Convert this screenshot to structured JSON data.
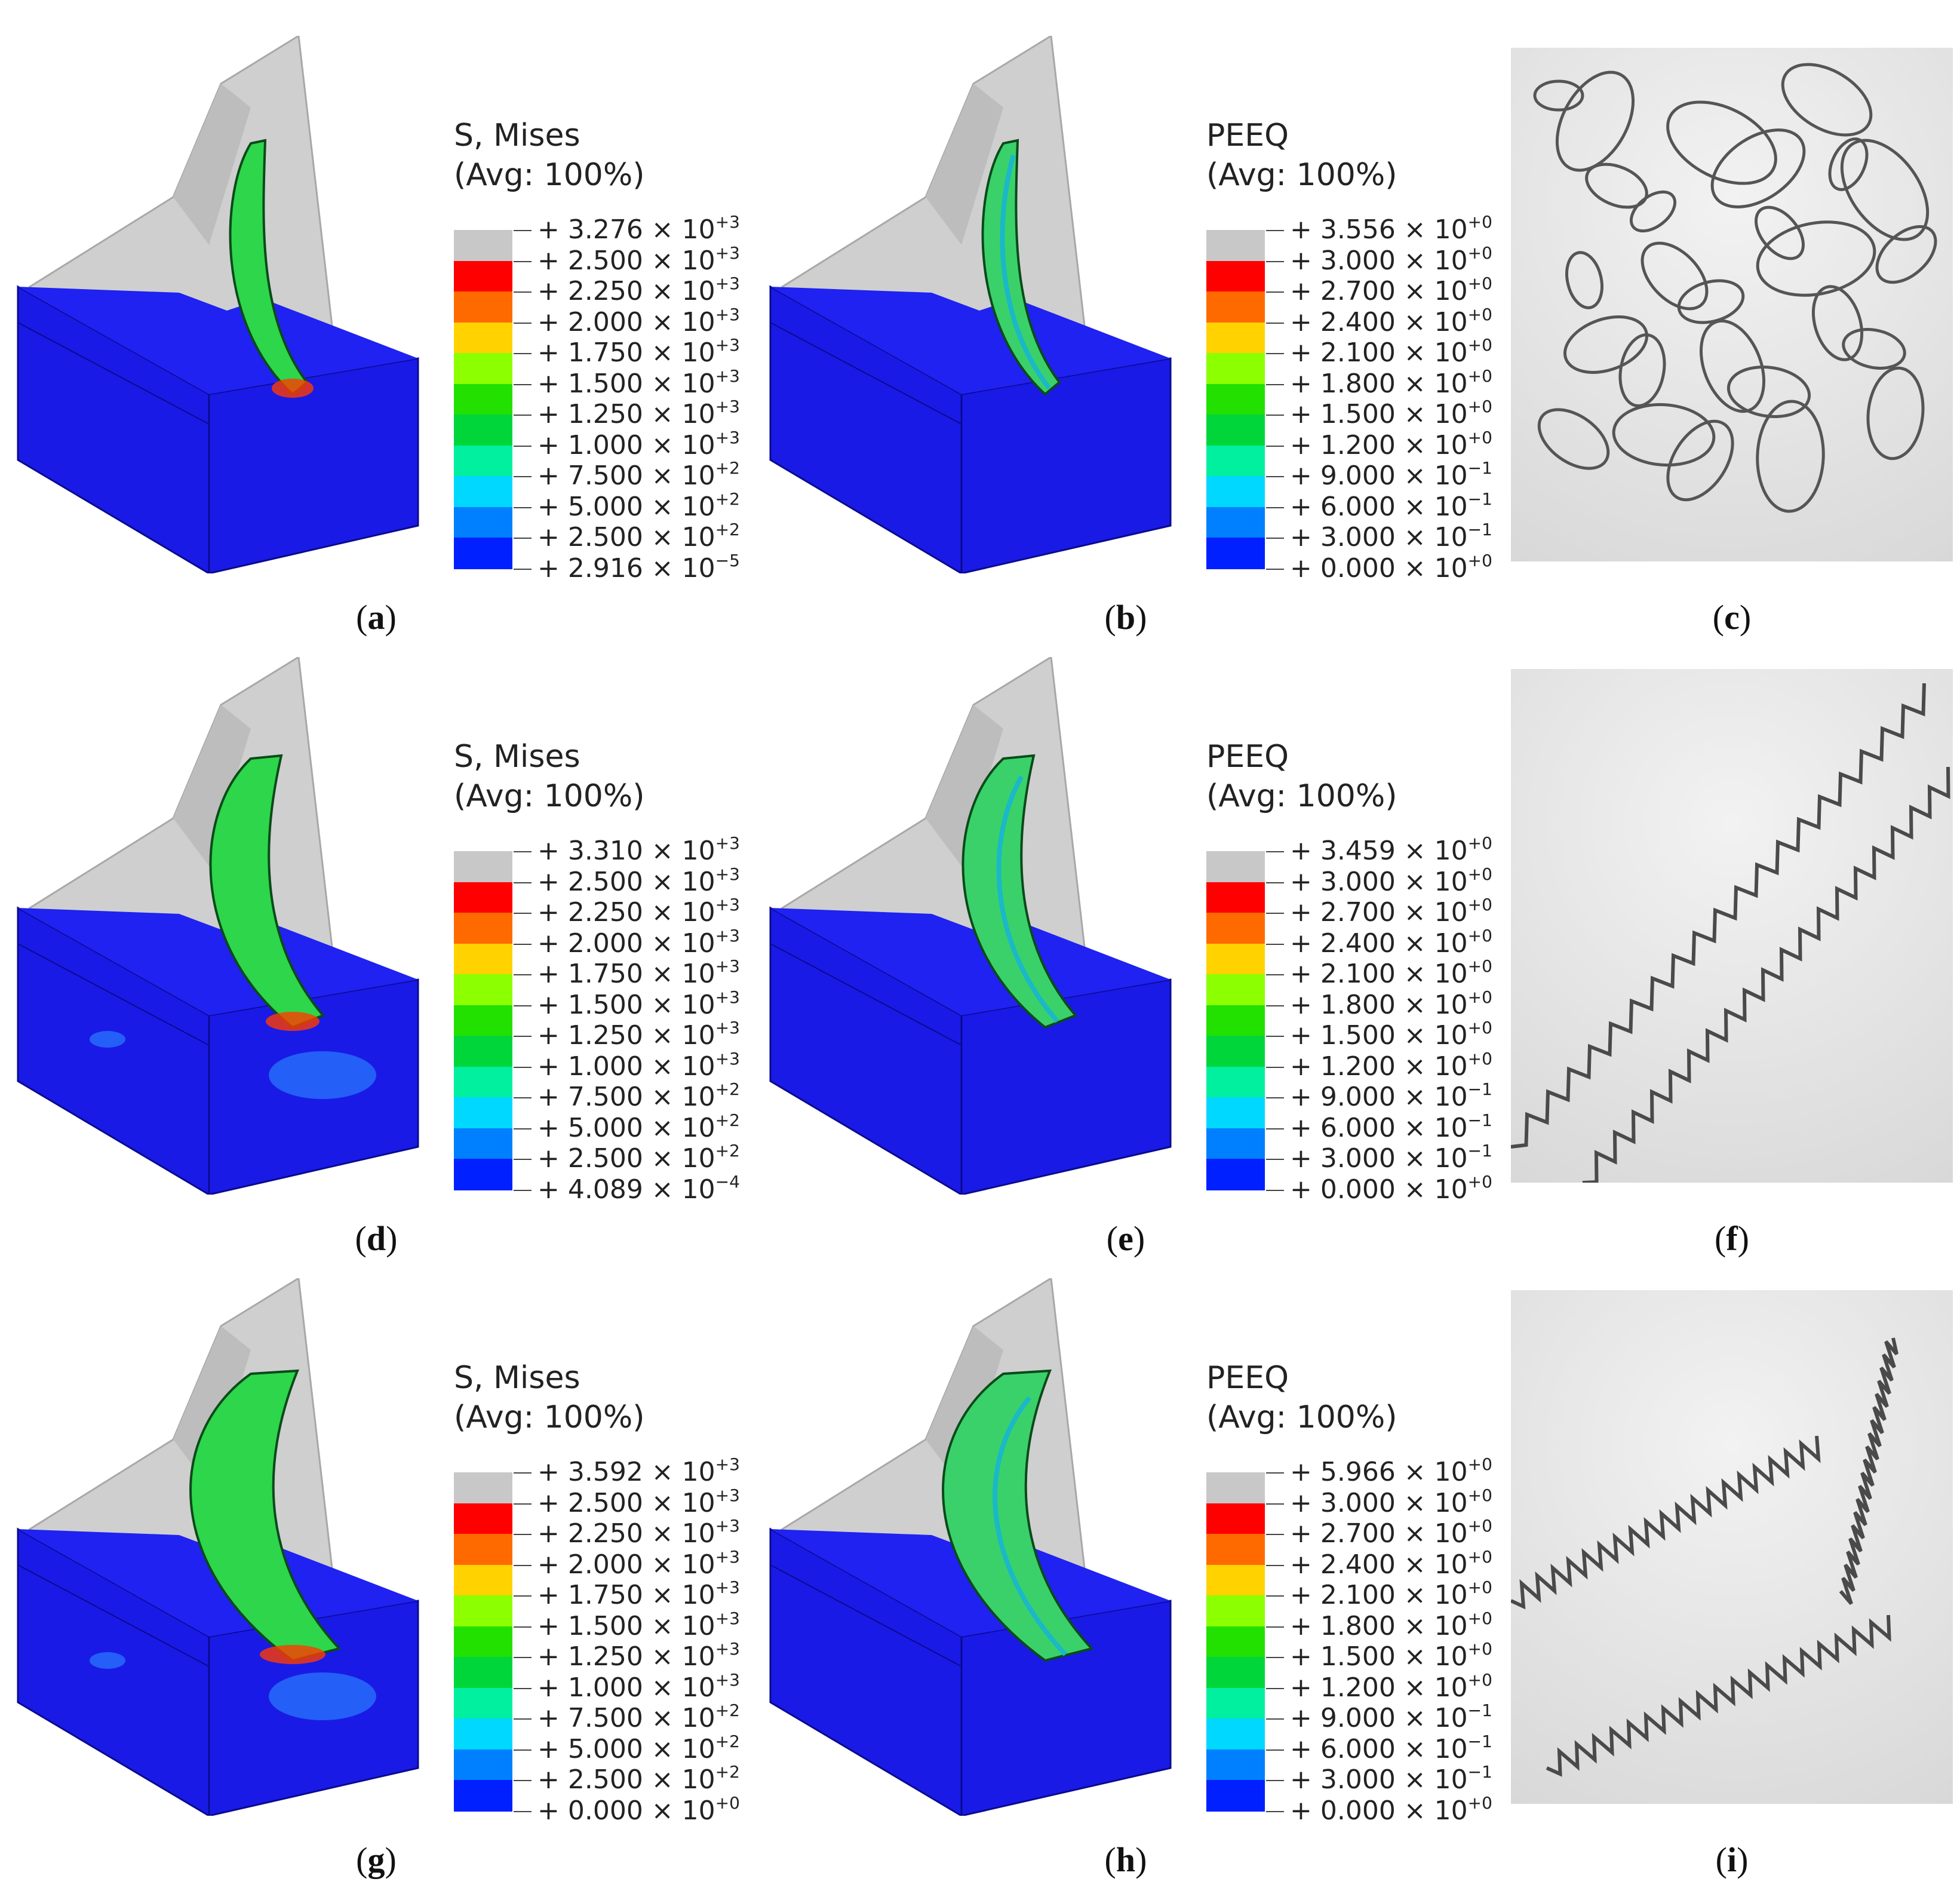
{
  "legend_colors": [
    "#c8c8c8",
    "#ff0000",
    "#ff6a00",
    "#ffd200",
    "#8cff00",
    "#22e000",
    "#00d63a",
    "#00f0a0",
    "#00d8ff",
    "#0080ff",
    "#0020ff"
  ],
  "panels": [
    {
      "caption": "a",
      "title1": "S, Mises",
      "title2": "(Avg: 100%)",
      "labels": [
        [
          "+ 3.276 × 10",
          "+3"
        ],
        [
          "+ 2.500 × 10",
          "+3"
        ],
        [
          "+ 2.250 × 10",
          "+3"
        ],
        [
          "+ 2.000 × 10",
          "+3"
        ],
        [
          "+ 1.750 × 10",
          "+3"
        ],
        [
          "+ 1.500 × 10",
          "+3"
        ],
        [
          "+ 1.250 × 10",
          "+3"
        ],
        [
          "+ 1.000 × 10",
          "+3"
        ],
        [
          "+ 7.500 × 10",
          "+2"
        ],
        [
          "+ 5.000 × 10",
          "+2"
        ],
        [
          "+ 2.500 × 10",
          "+2"
        ],
        [
          "+ 2.916 × 10",
          "−5"
        ]
      ]
    },
    {
      "caption": "b",
      "title1": "PEEQ",
      "title2": "(Avg: 100%)",
      "labels": [
        [
          "+ 3.556 × 10",
          "+0"
        ],
        [
          "+ 3.000 × 10",
          "+0"
        ],
        [
          "+ 2.700 × 10",
          "+0"
        ],
        [
          "+ 2.400 × 10",
          "+0"
        ],
        [
          "+ 2.100 × 10",
          "+0"
        ],
        [
          "+ 1.800 × 10",
          "+0"
        ],
        [
          "+ 1.500 × 10",
          "+0"
        ],
        [
          "+ 1.200 × 10",
          "+0"
        ],
        [
          "+ 9.000 × 10",
          "−1"
        ],
        [
          "+ 6.000 × 10",
          "−1"
        ],
        [
          "+ 3.000 × 10",
          "−1"
        ],
        [
          "+ 0.000 × 10",
          "+0"
        ]
      ]
    },
    {
      "caption": "c"
    },
    {
      "caption": "d",
      "title1": "S, Mises",
      "title2": "(Avg: 100%)",
      "labels": [
        [
          "+ 3.310 × 10",
          "+3"
        ],
        [
          "+ 2.500 × 10",
          "+3"
        ],
        [
          "+ 2.250 × 10",
          "+3"
        ],
        [
          "+ 2.000 × 10",
          "+3"
        ],
        [
          "+ 1.750 × 10",
          "+3"
        ],
        [
          "+ 1.500 × 10",
          "+3"
        ],
        [
          "+ 1.250 × 10",
          "+3"
        ],
        [
          "+ 1.000 × 10",
          "+3"
        ],
        [
          "+ 7.500 × 10",
          "+2"
        ],
        [
          "+ 5.000 × 10",
          "+2"
        ],
        [
          "+ 2.500 × 10",
          "+2"
        ],
        [
          "+ 4.089 × 10",
          "−4"
        ]
      ]
    },
    {
      "caption": "e",
      "title1": "PEEQ",
      "title2": "(Avg: 100%)",
      "labels": [
        [
          "+ 3.459 × 10",
          "+0"
        ],
        [
          "+ 3.000 × 10",
          "+0"
        ],
        [
          "+ 2.700 × 10",
          "+0"
        ],
        [
          "+ 2.400 × 10",
          "+0"
        ],
        [
          "+ 2.100 × 10",
          "+0"
        ],
        [
          "+ 1.800 × 10",
          "+0"
        ],
        [
          "+ 1.500 × 10",
          "+0"
        ],
        [
          "+ 1.200 × 10",
          "+0"
        ],
        [
          "+ 9.000 × 10",
          "−1"
        ],
        [
          "+ 6.000 × 10",
          "−1"
        ],
        [
          "+ 3.000 × 10",
          "−1"
        ],
        [
          "+ 0.000 × 10",
          "+0"
        ]
      ]
    },
    {
      "caption": "f"
    },
    {
      "caption": "g",
      "title1": "S, Mises",
      "title2": "(Avg: 100%)",
      "labels": [
        [
          "+ 3.592 × 10",
          "+3"
        ],
        [
          "+ 2.500 × 10",
          "+3"
        ],
        [
          "+ 2.250 × 10",
          "+3"
        ],
        [
          "+ 2.000 × 10",
          "+3"
        ],
        [
          "+ 1.750 × 10",
          "+3"
        ],
        [
          "+ 1.500 × 10",
          "+3"
        ],
        [
          "+ 1.250 × 10",
          "+3"
        ],
        [
          "+ 1.000 × 10",
          "+3"
        ],
        [
          "+ 7.500 × 10",
          "+2"
        ],
        [
          "+ 5.000 × 10",
          "+2"
        ],
        [
          "+ 2.500 × 10",
          "+2"
        ],
        [
          "+ 0.000 × 10",
          "+0"
        ]
      ]
    },
    {
      "caption": "h",
      "title1": "PEEQ",
      "title2": "(Avg: 100%)",
      "labels": [
        [
          "+ 5.966 × 10",
          "+0"
        ],
        [
          "+ 3.000 × 10",
          "+0"
        ],
        [
          "+ 2.700 × 10",
          "+0"
        ],
        [
          "+ 2.400 × 10",
          "+0"
        ],
        [
          "+ 2.100 × 10",
          "+0"
        ],
        [
          "+ 1.800 × 10",
          "+0"
        ],
        [
          "+ 1.500 × 10",
          "+0"
        ],
        [
          "+ 1.200 × 10",
          "+0"
        ],
        [
          "+ 9.000 × 10",
          "−1"
        ],
        [
          "+ 6.000 × 10",
          "−1"
        ],
        [
          "+ 3.000 × 10",
          "−1"
        ],
        [
          "+ 0.000 × 10",
          "+0"
        ]
      ]
    },
    {
      "caption": "i"
    }
  ]
}
